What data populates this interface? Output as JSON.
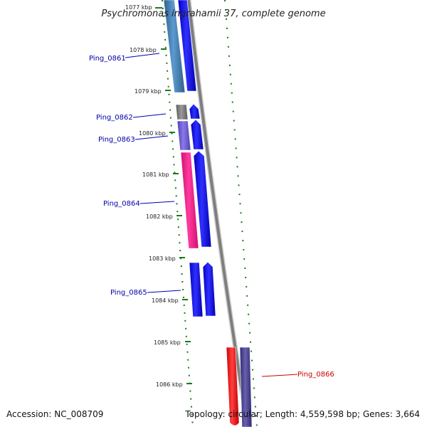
{
  "title": "Psychromonas ingrahamii 37, complete genome",
  "footer": {
    "accession": "Accession: NC_008709",
    "topology": "Topology: circular; Length: 4,559,598 bp; Genes: 3,664"
  },
  "scale": {
    "labels": [
      "1077 kbp",
      "1078 kbp",
      "1079 kbp",
      "1080 kbp",
      "1081 kbp",
      "1082 kbp",
      "1083 kbp",
      "1084 kbp",
      "1085 kbp",
      "1086 kbp"
    ]
  },
  "genes": [
    {
      "name": "Ping_0861",
      "color": "#0000aa"
    },
    {
      "name": "Ping_0862",
      "color": "#0000aa"
    },
    {
      "name": "Ping_0863",
      "color": "#0000aa"
    },
    {
      "name": "Ping_0864",
      "color": "#0000aa"
    },
    {
      "name": "Ping_0865",
      "color": "#0000aa"
    },
    {
      "name": "Ping_0866",
      "color": "#cc0000"
    }
  ],
  "colors": {
    "backbone": "#8a8a8a",
    "cds": "#0000ff",
    "tick": "#1b7a1b",
    "steelblue": "#4a82b4",
    "gray": "#808080",
    "slate": "#7060d0",
    "pink": "#ff2090",
    "red": "#ff0000",
    "darkslate": "#48408a"
  }
}
